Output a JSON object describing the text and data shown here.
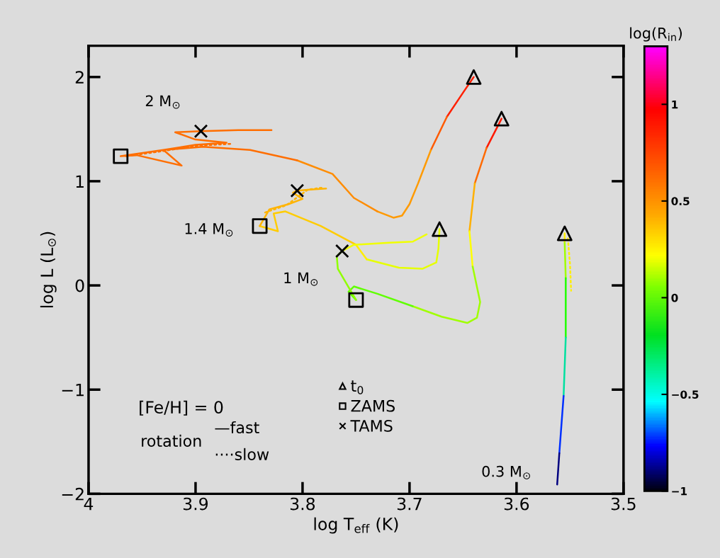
{
  "chart_data": {
    "type": "line",
    "xlabel": "log T$_{eff}$ (K)",
    "ylabel": "log L (L$_{⊙}$)",
    "clabel": "log(R$_{in}$)",
    "xlim": [
      4,
      3.5
    ],
    "xticks": [
      4,
      3.9,
      3.8,
      3.7,
      3.6,
      3.5
    ],
    "ylim": [
      -2,
      2.3
    ],
    "yticks": [
      {
        "value": -2,
        "label": "−2"
      },
      {
        "value": -1,
        "label": "−1"
      },
      0,
      1,
      2
    ],
    "clim": [
      -1,
      1.3
    ],
    "cticks": [
      {
        "value": -1,
        "label": "−1"
      },
      {
        "value": -0.5,
        "label": "−0.5"
      },
      0,
      0.5,
      1
    ],
    "legend": "bottom",
    "grid": false,
    "line_style": "solid",
    "series": [
      {
        "color": "#ff2000",
        "x": [
          3.64,
          3.65,
          3.665
        ],
        "values": [
          2.0,
          1.85,
          1.62
        ]
      },
      {
        "color": "#ff5a00",
        "x": [
          3.665,
          3.68
        ],
        "values": [
          1.62,
          1.3
        ]
      },
      {
        "color": "#ff9a00",
        "x": [
          3.68,
          3.692,
          3.7,
          3.707,
          3.715,
          3.73
        ],
        "values": [
          1.3,
          0.98,
          0.78,
          0.67,
          0.65,
          0.71
        ]
      },
      {
        "color": "#ff8c00",
        "x": [
          3.73,
          3.752,
          3.772,
          3.805
        ],
        "values": [
          0.71,
          0.84,
          1.07,
          1.2
        ]
      },
      {
        "color": "#ff6e00",
        "x": [
          3.805,
          3.849,
          3.893,
          3.93,
          3.913,
          3.955,
          3.97,
          3.93,
          3.9,
          3.871,
          3.9,
          3.919,
          3.895,
          3.86,
          3.829
        ],
        "values": [
          1.2,
          1.3,
          1.33,
          1.3,
          1.15,
          1.25,
          1.24,
          1.3,
          1.35,
          1.37,
          1.4,
          1.47,
          1.48,
          1.49,
          1.49
        ]
      },
      {
        "color": "#e6ff00",
        "x": [
          3.672,
          3.673,
          3.675,
          3.688,
          3.71,
          3.74
        ],
        "values": [
          0.54,
          0.35,
          0.22,
          0.16,
          0.17,
          0.25
        ]
      },
      {
        "color": "#ffee00",
        "x": [
          3.74,
          3.75
        ],
        "values": [
          0.25,
          0.39
        ]
      },
      {
        "color": "#ffcc00",
        "x": [
          3.75,
          3.783,
          3.816,
          3.827,
          3.823,
          3.84
        ],
        "values": [
          0.39,
          0.57,
          0.71,
          0.69,
          0.52,
          0.57
        ]
      },
      {
        "color": "#ffb400",
        "x": [
          3.84,
          3.831,
          3.813,
          3.8,
          3.809,
          3.805,
          3.793,
          3.778
        ],
        "values": [
          0.57,
          0.73,
          0.78,
          0.83,
          0.89,
          0.91,
          0.92,
          0.93
        ]
      },
      {
        "color": "#ff1a00",
        "x": [
          3.614,
          3.628
        ],
        "values": [
          1.6,
          1.32
        ]
      },
      {
        "color": "#ff6a00",
        "x": [
          3.628,
          3.639
        ],
        "values": [
          1.32,
          0.98
        ]
      },
      {
        "color": "#ffb000",
        "x": [
          3.639,
          3.644
        ],
        "values": [
          0.98,
          0.52
        ]
      },
      {
        "color": "#ffff00",
        "x": [
          3.644,
          3.641
        ],
        "values": [
          0.52,
          0.18
        ]
      },
      {
        "color": "#a0ff00",
        "x": [
          3.641,
          3.634,
          3.637,
          3.646,
          3.67,
          3.697
        ],
        "values": [
          0.18,
          -0.16,
          -0.31,
          -0.36,
          -0.3,
          -0.2
        ]
      },
      {
        "color": "#60ff00",
        "x": [
          3.697,
          3.73,
          3.752,
          3.757,
          3.75
        ],
        "values": [
          -0.2,
          -0.08,
          -0.01,
          -0.06,
          -0.14
        ]
      },
      {
        "color": "#90ff00",
        "x": [
          3.75,
          3.767,
          3.768,
          3.763
        ],
        "values": [
          -0.14,
          0.16,
          0.28,
          0.33
        ]
      },
      {
        "color": "#f0ff00",
        "x": [
          3.763,
          3.752,
          3.719,
          3.697,
          3.684
        ],
        "values": [
          0.33,
          0.39,
          0.41,
          0.42,
          0.49
        ]
      },
      {
        "color": "#ffee00",
        "x": [
          3.555,
          3.555
        ],
        "values": [
          0.5,
          0.41
        ]
      },
      {
        "color": "#a0ff00",
        "x": [
          3.555,
          3.554
        ],
        "values": [
          0.41,
          0.07
        ]
      },
      {
        "color": "#20ff00",
        "x": [
          3.554,
          3.554
        ],
        "values": [
          0.07,
          -0.5
        ]
      },
      {
        "color": "#00e0a0",
        "x": [
          3.554,
          3.556
        ],
        "values": [
          -0.5,
          -1.06
        ]
      },
      {
        "color": "#0030ff",
        "x": [
          3.556,
          3.56
        ],
        "values": [
          -1.06,
          -1.61
        ]
      },
      {
        "color": "#000080",
        "x": [
          3.56,
          3.562
        ],
        "values": [
          -1.61,
          -1.91
        ]
      },
      {
        "color": "#ff7000",
        "line_style": "dotted",
        "x": [
          3.965,
          3.93,
          3.9,
          3.865
        ],
        "values": [
          1.24,
          1.29,
          1.34,
          1.36
        ]
      },
      {
        "color": "#ffb400",
        "line_style": "dotted",
        "x": [
          3.835,
          3.815,
          3.795,
          3.78
        ],
        "values": [
          0.7,
          0.77,
          0.92,
          0.94
        ]
      },
      {
        "color": "#ffee00",
        "line_style": "dotted",
        "x": [
          3.552,
          3.55,
          3.549
        ],
        "values": [
          0.45,
          0.2,
          -0.05
        ]
      },
      {
        "name": "t$_{0}$",
        "type": "scatter",
        "marker": "triangle",
        "color": "#000000",
        "x": [
          3.64,
          3.614,
          3.672,
          3.555
        ],
        "values": [
          2.0,
          1.6,
          0.54,
          0.5
        ]
      },
      {
        "name": "ZAMS",
        "type": "scatter",
        "marker": "square",
        "color": "#000000",
        "x": [
          3.97,
          3.84,
          3.75
        ],
        "values": [
          1.24,
          0.57,
          -0.14
        ]
      },
      {
        "name": "TAMS",
        "type": "scatter",
        "marker": "cross",
        "color": "#000000",
        "x": [
          3.895,
          3.805,
          3.763
        ],
        "values": [
          1.48,
          0.91,
          0.33
        ]
      }
    ],
    "annotations": [
      "2 M$_{⊙}$",
      "1.4 M$_{⊙}$",
      "1 M$_{⊙}$",
      "0.3 M$_{⊙}$",
      "[Fe/H] = 0",
      "rotation",
      "—fast",
      "····slow"
    ]
  }
}
